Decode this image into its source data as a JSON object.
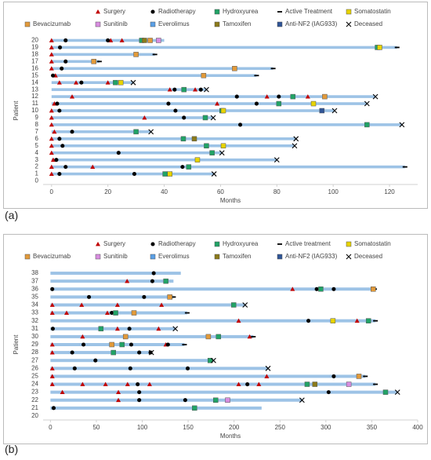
{
  "chart_data": [
    {
      "type": "swimmer",
      "label": "(a)",
      "xlabel": "Months",
      "ylabel": "Patient",
      "xlim": [
        -3,
        130
      ],
      "xticks": [
        0,
        20,
        40,
        60,
        80,
        100,
        120
      ],
      "ylim": [
        -0.5,
        20.5
      ],
      "yticks": [
        0,
        1,
        2,
        3,
        4,
        5,
        6,
        7,
        8,
        9,
        10,
        11,
        12,
        13,
        14,
        15,
        16,
        17,
        18,
        19,
        20
      ],
      "lanes": {
        "color": "#9dc3e6",
        "y": [
          1,
          2,
          3,
          4,
          5,
          6,
          7,
          8,
          9,
          10,
          11,
          12,
          13,
          14,
          15,
          16,
          17,
          18,
          19,
          20
        ],
        "values": [
          57.7,
          125.5,
          80,
          60.5,
          86.3,
          86.8,
          35.3,
          124.4,
          57.4,
          100.5,
          112,
          115,
          55,
          29,
          72.8,
          78.7,
          17,
          36.7,
          122.7,
          40
        ]
      },
      "series": [
        {
          "name": "Surgery",
          "color": "#c00000",
          "marker": "triangle",
          "x": [
            0,
            21,
            25,
            0,
            0,
            0,
            0,
            1.4,
            2.8,
            8.7,
            20,
            42,
            51,
            7.3,
            76.5,
            91,
            1,
            58.8,
            0,
            0,
            33,
            0,
            1,
            0,
            0,
            0,
            0.6,
            0,
            14.6,
            0
          ],
          "y": [
            20,
            20,
            20,
            19,
            18,
            17,
            16,
            15,
            14,
            14,
            14,
            13,
            13,
            12,
            12,
            12,
            11,
            11,
            10,
            9,
            9,
            8,
            7,
            6,
            5,
            4,
            3,
            2,
            2,
            1
          ]
        },
        {
          "name": "Radiotherapy",
          "color": "#000000",
          "marker": "circle",
          "x": [
            5,
            20,
            3,
            5,
            3.6,
            0.5,
            10.6,
            43.7,
            53,
            65.8,
            80.7,
            2,
            41.5,
            72.8,
            2.8,
            44,
            47,
            67,
            7.3,
            2.8,
            3.9,
            23.8,
            1.7,
            5,
            46.5,
            2.8,
            29.4
          ],
          "y": [
            20,
            20,
            19,
            17,
            16,
            15,
            14,
            13,
            13,
            12,
            12,
            11,
            11,
            11,
            10,
            10,
            9,
            8,
            7,
            6,
            5,
            4,
            3,
            2,
            2,
            1,
            1
          ]
        },
        {
          "name": "Hydroxyurea",
          "color": "#21a366",
          "marker": "square",
          "x": [
            32,
            115.7,
            22.7,
            47,
            85.7,
            80.7,
            60.5,
            54.6,
            112,
            30,
            46.8,
            55,
            57,
            48.7,
            40.3
          ],
          "y": [
            20,
            19,
            14,
            13,
            12,
            11,
            10,
            9,
            8,
            7,
            6,
            5,
            4,
            2,
            1
          ]
        },
        {
          "name": "Active Treatment",
          "color": "#000000",
          "marker": "dash",
          "x": [
            122.7,
            36.7,
            17,
            78.7,
            72.8,
            125.5
          ],
          "y": [
            19,
            18,
            17,
            16,
            15,
            2
          ]
        },
        {
          "name": "Somatostatin",
          "color": "#e8d400",
          "marker": "square",
          "x": [
            116.5,
            24.6,
            93,
            61,
            61,
            51.8,
            42
          ],
          "y": [
            19,
            14,
            11,
            10,
            5,
            3,
            1
          ]
        },
        {
          "name": "Bevacizumab",
          "color": "#e29a3a",
          "marker": "square",
          "x": [
            35,
            30,
            15,
            65,
            54,
            97
          ],
          "y": [
            20,
            18,
            17,
            16,
            15,
            12
          ]
        },
        {
          "name": "Sunitinib",
          "color": "#d88de0",
          "marker": "square",
          "x": [
            38
          ],
          "y": [
            20
          ]
        },
        {
          "name": "Everolimus",
          "color": "#5aa0e6",
          "marker": "square",
          "x": [],
          "y": []
        },
        {
          "name": "Tamoxifen",
          "color": "#8b7a1a",
          "marker": "square",
          "x": [
            33,
            50.7
          ],
          "y": [
            20,
            6
          ]
        },
        {
          "name": "Anti-NF2 (IAG933)",
          "color": "#2f5597",
          "marker": "square",
          "x": [
            96
          ],
          "y": [
            10
          ]
        },
        {
          "name": "Deceased",
          "color": "#000000",
          "marker": "cross",
          "x": [
            29,
            55,
            115,
            112,
            100.5,
            57.4,
            124.4,
            35.3,
            86.8,
            86.3,
            60.5,
            80,
            57.7
          ],
          "y": [
            14,
            13,
            12,
            11,
            10,
            9,
            8,
            7,
            6,
            5,
            4,
            3,
            1
          ]
        }
      ]
    },
    {
      "type": "swimmer",
      "label": "(b)",
      "xlabel": "Months",
      "ylabel": "Patient",
      "xlim": [
        -8,
        400
      ],
      "xticks": [
        0,
        50,
        100,
        150,
        200,
        250,
        300,
        350,
        400
      ],
      "ylim": [
        19.5,
        38.5
      ],
      "yticks": [
        20,
        21,
        22,
        23,
        24,
        25,
        26,
        27,
        28,
        29,
        30,
        31,
        32,
        33,
        34,
        35,
        36,
        37,
        38
      ],
      "lanes": {
        "color": "#9dc3e6",
        "y": [
          21,
          22,
          23,
          24,
          25,
          26,
          27,
          28,
          29,
          30,
          31,
          32,
          33,
          34,
          35,
          36,
          37,
          38
        ],
        "values": [
          230,
          274,
          378,
          354,
          343,
          237,
          177.6,
          110,
          146,
          221,
          136,
          354,
          149,
          212,
          134,
          353,
          134,
          142
        ]
      },
      "series": [
        {
          "name": "Surgery",
          "color": "#c00000",
          "marker": "triangle",
          "x": [
            83.5,
            263.7,
            2,
            34,
            73,
            121,
            2,
            17.6,
            62,
            205,
            334,
            73,
            117.8,
            35,
            217,
            2,
            125.7,
            2,
            2,
            2,
            235.6,
            2,
            35,
            60,
            84,
            108,
            205,
            227,
            13,
            74,
            74
          ],
          "y": [
            37,
            36,
            34,
            34,
            34,
            34,
            33,
            33,
            33,
            32,
            32,
            31,
            31,
            30,
            30,
            29,
            29,
            28,
            26,
            25,
            25,
            24,
            24,
            24,
            24,
            24,
            24,
            24,
            23,
            23,
            22
          ]
        },
        {
          "name": "Radiotherapy",
          "color": "#000000",
          "marker": "circle",
          "x": [
            112.5,
            111,
            2,
            290,
            308.6,
            42,
            102,
            66.8,
            281,
            2.6,
            86,
            36,
            88,
            128,
            23.7,
            96.7,
            109,
            49,
            26.4,
            87,
            149.5,
            308.6,
            95,
            214.5,
            96.7,
            303,
            96.7,
            146.8,
            3.5
          ],
          "y": [
            38,
            37,
            36,
            36,
            36,
            35,
            35,
            33,
            32,
            31,
            31,
            29,
            29,
            29,
            28,
            28,
            28,
            27,
            26,
            26,
            26,
            25,
            24,
            24,
            23,
            23,
            22,
            22,
            21
          ]
        },
        {
          "name": "Hydroxyurea",
          "color": "#21a366",
          "marker": "square",
          "x": [
            125.7,
            294.5,
            199.6,
            71,
            346.4,
            55,
            183,
            78,
            68.6,
            174,
            279.6,
            365,
            180,
            157
          ],
          "y": [
            37,
            36,
            34,
            33,
            32,
            31,
            30,
            29,
            28,
            27,
            24,
            23,
            22,
            21
          ]
        },
        {
          "name": "Active treatment",
          "color": "#000000",
          "marker": "dash",
          "x": [
            353,
            134,
            149,
            354,
            221,
            146,
            343,
            354
          ],
          "y": [
            36,
            35,
            33,
            32,
            30,
            29,
            25,
            24
          ]
        },
        {
          "name": "Somatostatin",
          "color": "#e8d400",
          "marker": "square",
          "x": [
            307.7
          ],
          "y": [
            32
          ]
        },
        {
          "name": "Bevacizumab",
          "color": "#e29a3a",
          "marker": "square",
          "x": [
            351.6,
            130,
            91,
            81.8,
            172,
            66.8,
            336
          ],
          "y": [
            36,
            35,
            33,
            30,
            30,
            29,
            25
          ]
        },
        {
          "name": "Sunitinib",
          "color": "#d88de0",
          "marker": "square",
          "x": [
            325,
            193
          ],
          "y": [
            24,
            22
          ]
        },
        {
          "name": "Everolimus",
          "color": "#5aa0e6",
          "marker": "square",
          "x": [],
          "y": []
        },
        {
          "name": "Tamoxifen",
          "color": "#8b7a1a",
          "marker": "square",
          "x": [
            288
          ],
          "y": [
            24
          ]
        },
        {
          "name": "Anti-NF2 (IAG933)",
          "color": "#2f5597",
          "marker": "square",
          "x": [],
          "y": []
        },
        {
          "name": "Deceased",
          "color": "#000000",
          "marker": "cross",
          "x": [
            212,
            136,
            110,
            177.6,
            237,
            378,
            274
          ],
          "y": [
            34,
            31,
            28,
            27,
            26,
            23,
            22
          ]
        }
      ]
    }
  ]
}
